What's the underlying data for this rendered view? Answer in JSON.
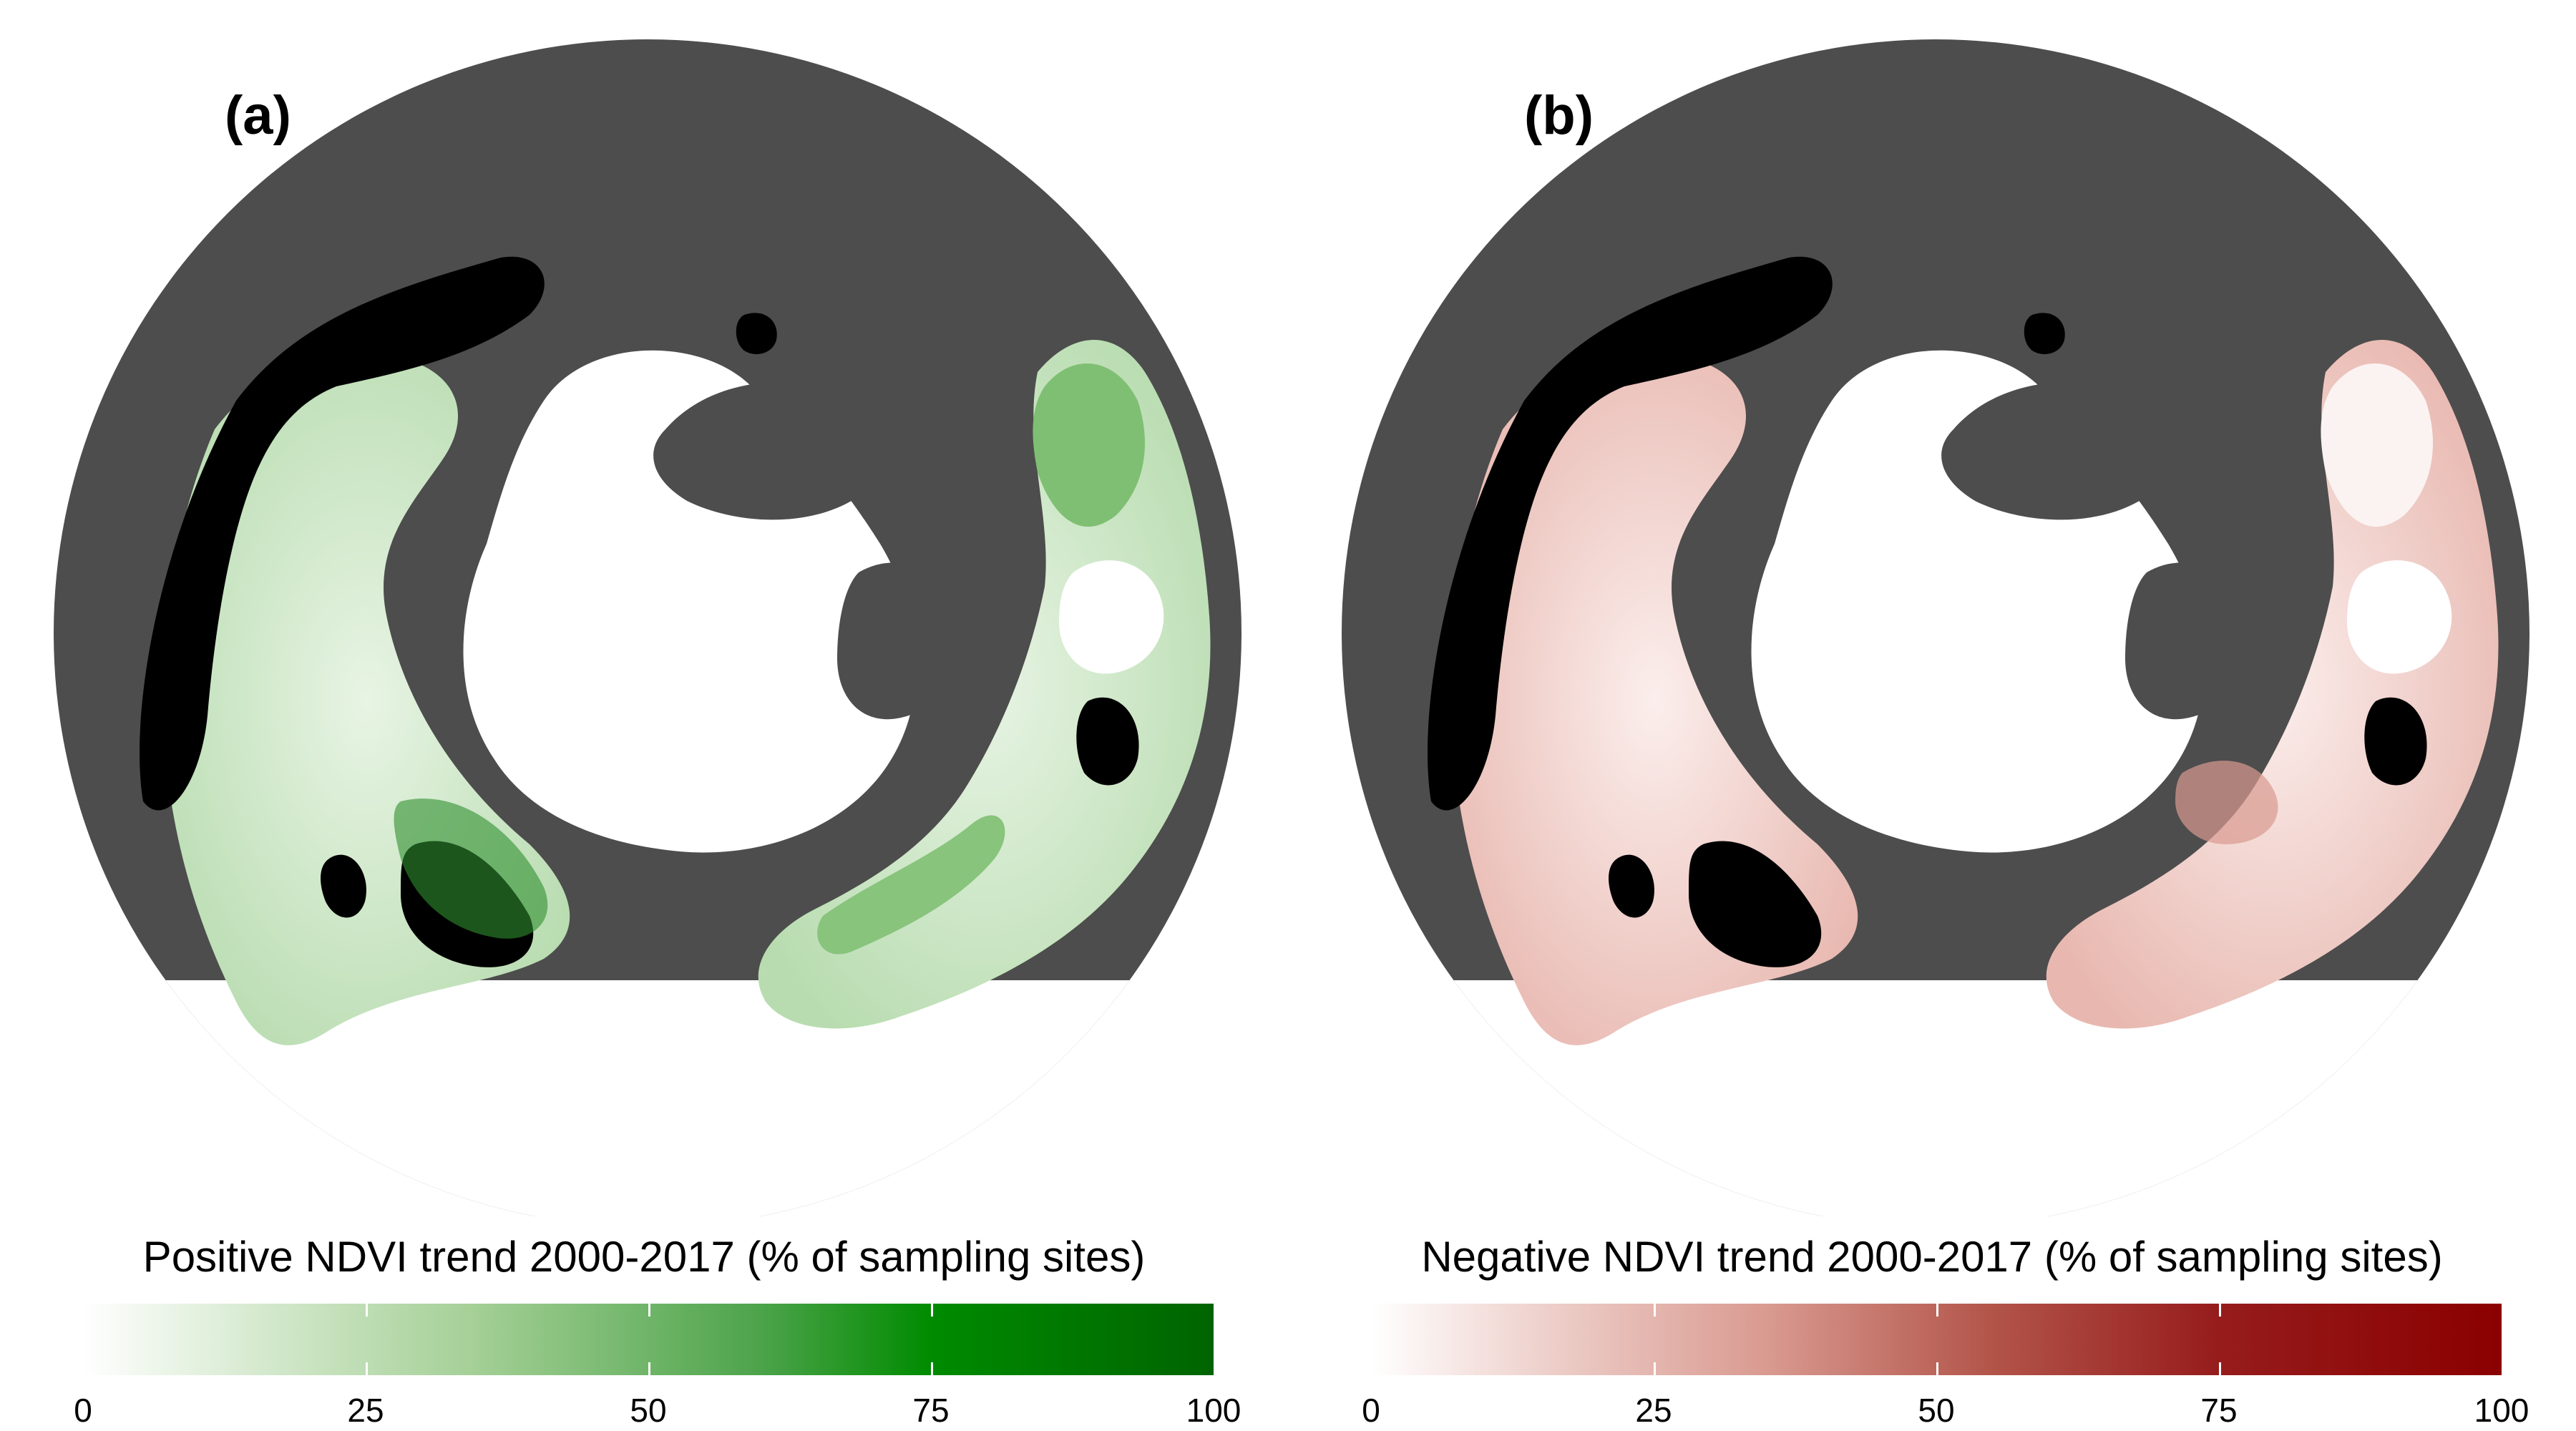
{
  "figure": {
    "panels": [
      {
        "label": "(a)",
        "legend_title": "Positive NDVI trend 2000-2017 (% of sampling sites)",
        "color_low": "#ffffff",
        "color_high": "#006400",
        "tick_labels": [
          "0",
          "25",
          "50",
          "75",
          "100"
        ],
        "land_fill": "#d9efd4"
      },
      {
        "label": "(b)",
        "legend_title": "Negative NDVI trend 2000-2017 (% of sampling sites)",
        "color_low": "#ffffff",
        "color_high": "#8b0000",
        "tick_labels": [
          "0",
          "25",
          "50",
          "75",
          "100"
        ],
        "land_fill": "#f3d8d3"
      }
    ],
    "ocean_color": "#4d4d4d",
    "no_data_color": "#000000",
    "ice_color": "#ffffff"
  }
}
